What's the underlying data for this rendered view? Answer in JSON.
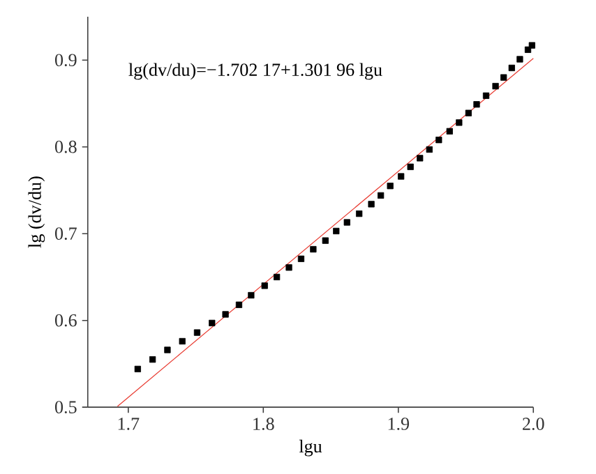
{
  "chart_data": {
    "type": "scatter",
    "xlabel": "lgu",
    "ylabel": "lg (dv/du)",
    "annotations": [
      "lg(dv/du)=−1.702 17+1.301 96 lgu"
    ],
    "xlim": [
      1.67,
      2.0
    ],
    "ylim": [
      0.5,
      0.95
    ],
    "xticks": [
      1.7,
      1.8,
      1.9,
      {
        "value": 2.0,
        "label": "2.0"
      }
    ],
    "yticks": [
      0.5,
      0.6,
      0.7,
      0.8,
      0.9
    ],
    "grid": false,
    "marker": "square",
    "series": [
      {
        "color": "#000000",
        "x": [
          1.707,
          1.718,
          1.729,
          1.74,
          1.751,
          1.762,
          1.772,
          1.782,
          1.791,
          1.801,
          1.81,
          1.819,
          1.828,
          1.837,
          1.846,
          1.854,
          1.862,
          1.871,
          1.88,
          1.887,
          1.894,
          1.902,
          1.909,
          1.916,
          1.923,
          1.93,
          1.938,
          1.945,
          1.952,
          1.958,
          1.965,
          1.972,
          1.978,
          1.984,
          1.99,
          1.996,
          1.999
        ],
        "values": [
          0.544,
          0.555,
          0.566,
          0.576,
          0.586,
          0.597,
          0.607,
          0.618,
          0.629,
          0.64,
          0.65,
          0.661,
          0.671,
          0.682,
          0.692,
          0.703,
          0.713,
          0.723,
          0.734,
          0.744,
          0.755,
          0.766,
          0.777,
          0.787,
          0.797,
          0.808,
          0.818,
          0.828,
          0.839,
          0.849,
          0.859,
          0.87,
          0.88,
          0.891,
          0.901,
          0.912,
          0.917
        ]
      },
      {
        "type": "line",
        "color": "#e8392f",
        "marker": "none",
        "line_style": "solid",
        "x": [
          1.692,
          2.0
        ],
        "values": [
          0.501,
          0.902
        ]
      }
    ]
  }
}
